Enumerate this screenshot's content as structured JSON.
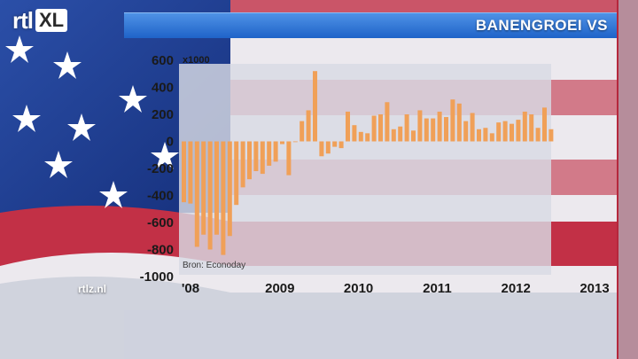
{
  "header": {
    "logo_text": "rtl",
    "logo_badge": "XL",
    "title": "BANENGROEI VS"
  },
  "footer": {
    "site": "rtlz.nl"
  },
  "colors": {
    "bar": "#f0a058",
    "title_bar": "#2f74d8",
    "plot_bg": "#d8dbe4"
  },
  "icons": [
    "rtl-xl-logo",
    "us-flag-background"
  ],
  "chart_data": {
    "type": "bar",
    "unit_label": "x1000",
    "source": "Bron: Econoday",
    "ylim": [
      -1000,
      600
    ],
    "yticks": [
      600,
      400,
      200,
      0,
      -200,
      -400,
      -600,
      -800,
      -1000
    ],
    "xticks": [
      "'08",
      "2009",
      "2010",
      "2011",
      "2012",
      "2013"
    ],
    "grid": false,
    "start_month": "2008-01",
    "values": [
      -450,
      -460,
      -780,
      -690,
      -800,
      -690,
      -840,
      -700,
      -470,
      -340,
      -280,
      -220,
      -240,
      -180,
      -150,
      -20,
      -250,
      0,
      150,
      230,
      520,
      -110,
      -90,
      -40,
      -50,
      220,
      120,
      70,
      60,
      190,
      200,
      290,
      90,
      110,
      200,
      80,
      230,
      170,
      170,
      220,
      180,
      310,
      280,
      150,
      210,
      90,
      100,
      60,
      140,
      150,
      130,
      160,
      220,
      200,
      100,
      250,
      90
    ]
  }
}
